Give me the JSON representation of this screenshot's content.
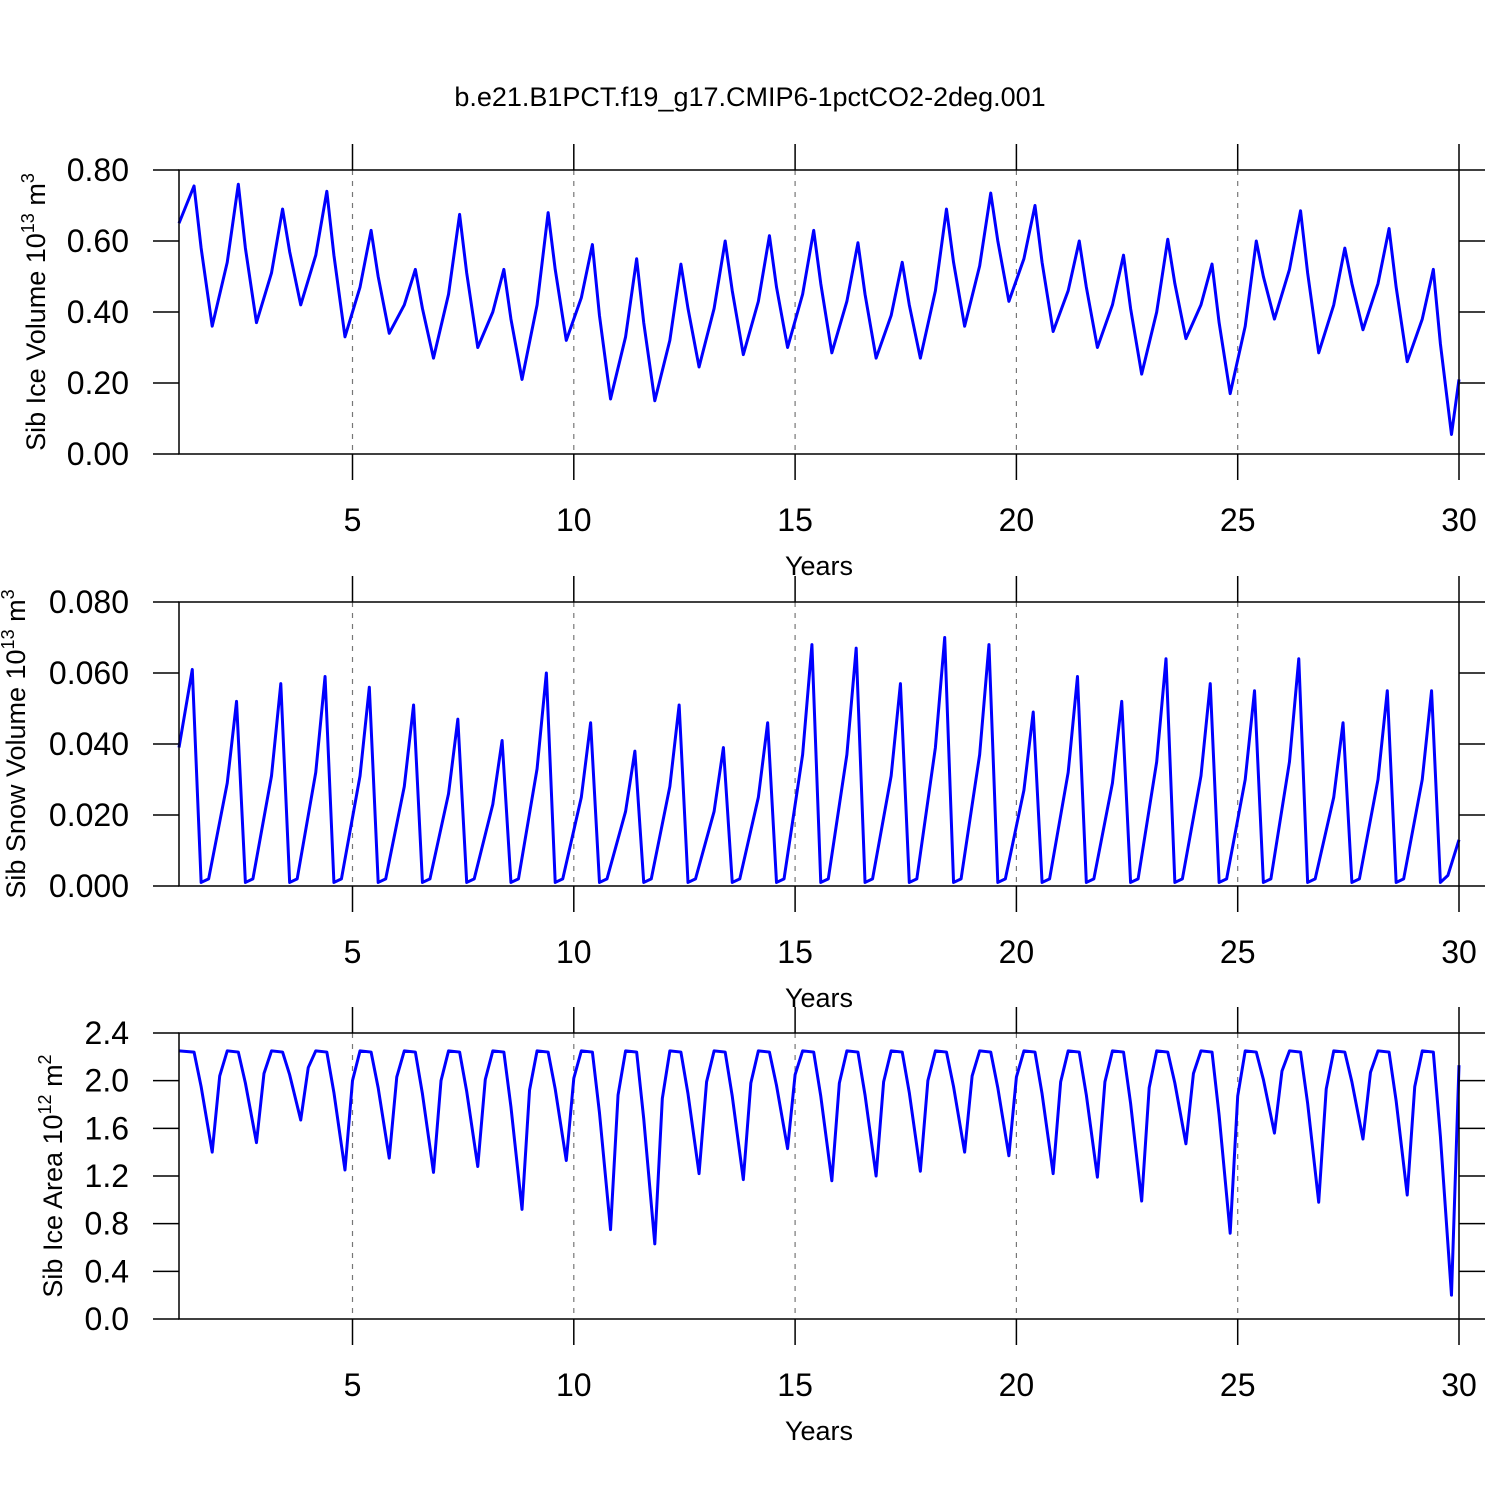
{
  "chart_data": [
    {
      "type": "line",
      "title": "b.e21.B1PCT.f19_g17.CMIP6-1pctCO2-2deg.001",
      "ylabel": [
        "Sib Ice Volume 10",
        "13",
        " m",
        "3"
      ],
      "xlabel": "Years",
      "color": "#0000ff",
      "xlim": [
        1.08,
        30
      ],
      "xticks": [
        5,
        10,
        15,
        20,
        25,
        30
      ],
      "grid": true,
      "ylim": [
        0,
        0.8
      ],
      "yticks": [
        {
          "value": 0,
          "label": "0.00"
        },
        {
          "value": 0.2,
          "label": "0.20"
        },
        {
          "value": 0.4,
          "label": "0.40"
        },
        {
          "value": 0.6,
          "label": "0.60"
        },
        {
          "value": 0.8,
          "label": "0.80"
        }
      ],
      "x": [
        1.08,
        1.42,
        1.58,
        1.83,
        2.17,
        2.42,
        2.58,
        2.83,
        3.17,
        3.42,
        3.58,
        3.83,
        4.17,
        4.42,
        4.58,
        4.83,
        5.17,
        5.42,
        5.58,
        5.83,
        6.17,
        6.42,
        6.58,
        6.83,
        7.17,
        7.42,
        7.58,
        7.83,
        8.17,
        8.42,
        8.58,
        8.83,
        9.17,
        9.42,
        9.58,
        9.83,
        10.17,
        10.42,
        10.58,
        10.83,
        11.17,
        11.42,
        11.58,
        11.83,
        12.17,
        12.42,
        12.58,
        12.83,
        13.17,
        13.42,
        13.58,
        13.83,
        14.17,
        14.42,
        14.58,
        14.83,
        15.17,
        15.42,
        15.58,
        15.83,
        16.17,
        16.42,
        16.58,
        16.83,
        17.17,
        17.42,
        17.58,
        17.83,
        18.17,
        18.42,
        18.58,
        18.83,
        19.17,
        19.42,
        19.58,
        19.83,
        20.17,
        20.42,
        20.58,
        20.83,
        21.17,
        21.42,
        21.58,
        21.83,
        22.17,
        22.42,
        22.58,
        22.83,
        23.17,
        23.42,
        23.58,
        23.83,
        24.17,
        24.42,
        24.58,
        24.83,
        25.17,
        25.42,
        25.58,
        25.83,
        26.17,
        26.42,
        26.58,
        26.83,
        27.17,
        27.42,
        27.58,
        27.83,
        28.17,
        28.42,
        28.58,
        28.83,
        29.17,
        29.42,
        29.58,
        29.83,
        30
      ],
      "values": [
        0.65,
        0.755,
        0.58,
        0.36,
        0.54,
        0.76,
        0.58,
        0.37,
        0.51,
        0.69,
        0.57,
        0.42,
        0.56,
        0.74,
        0.56,
        0.33,
        0.47,
        0.63,
        0.5,
        0.34,
        0.42,
        0.52,
        0.41,
        0.27,
        0.45,
        0.675,
        0.51,
        0.3,
        0.4,
        0.52,
        0.38,
        0.21,
        0.42,
        0.68,
        0.52,
        0.32,
        0.44,
        0.59,
        0.39,
        0.155,
        0.33,
        0.55,
        0.37,
        0.15,
        0.32,
        0.535,
        0.41,
        0.245,
        0.41,
        0.6,
        0.46,
        0.28,
        0.43,
        0.615,
        0.47,
        0.3,
        0.45,
        0.63,
        0.48,
        0.285,
        0.43,
        0.595,
        0.45,
        0.27,
        0.39,
        0.54,
        0.42,
        0.27,
        0.46,
        0.69,
        0.54,
        0.36,
        0.53,
        0.735,
        0.6,
        0.43,
        0.55,
        0.7,
        0.54,
        0.345,
        0.46,
        0.6,
        0.47,
        0.3,
        0.42,
        0.56,
        0.41,
        0.225,
        0.4,
        0.605,
        0.48,
        0.325,
        0.42,
        0.535,
        0.37,
        0.17,
        0.36,
        0.6,
        0.5,
        0.38,
        0.52,
        0.685,
        0.51,
        0.285,
        0.42,
        0.58,
        0.48,
        0.35,
        0.48,
        0.635,
        0.47,
        0.26,
        0.38,
        0.52,
        0.31,
        0.055,
        0.21
      ]
    },
    {
      "type": "line",
      "ylabel": [
        "Sib Snow Volume 10",
        "13",
        " m",
        "3"
      ],
      "xlabel": "Years",
      "color": "#0000ff",
      "xlim": [
        1.08,
        30
      ],
      "xticks": [
        5,
        10,
        15,
        20,
        25,
        30
      ],
      "grid": true,
      "ylim": [
        0,
        0.08
      ],
      "yticks": [
        {
          "value": 0,
          "label": "0.000"
        },
        {
          "value": 0.02,
          "label": "0.020"
        },
        {
          "value": 0.04,
          "label": "0.040"
        },
        {
          "value": 0.06,
          "label": "0.060"
        },
        {
          "value": 0.08,
          "label": "0.080"
        }
      ],
      "x": [
        1.08,
        1.38,
        1.58,
        1.75,
        2.17,
        2.38,
        2.58,
        2.75,
        3.17,
        3.38,
        3.58,
        3.75,
        4.17,
        4.38,
        4.58,
        4.75,
        5.17,
        5.38,
        5.58,
        5.75,
        6.17,
        6.38,
        6.58,
        6.75,
        7.17,
        7.38,
        7.58,
        7.75,
        8.17,
        8.38,
        8.58,
        8.75,
        9.17,
        9.38,
        9.58,
        9.75,
        10.17,
        10.38,
        10.58,
        10.75,
        11.17,
        11.38,
        11.58,
        11.75,
        12.17,
        12.38,
        12.58,
        12.75,
        13.17,
        13.38,
        13.58,
        13.75,
        14.17,
        14.38,
        14.58,
        14.75,
        15.17,
        15.38,
        15.58,
        15.75,
        16.17,
        16.38,
        16.58,
        16.75,
        17.17,
        17.38,
        17.58,
        17.75,
        18.17,
        18.38,
        18.58,
        18.75,
        19.17,
        19.38,
        19.58,
        19.75,
        20.17,
        20.38,
        20.58,
        20.75,
        21.17,
        21.38,
        21.58,
        21.75,
        22.17,
        22.38,
        22.58,
        22.75,
        23.17,
        23.38,
        23.58,
        23.75,
        24.17,
        24.38,
        24.58,
        24.75,
        25.17,
        25.38,
        25.58,
        25.75,
        26.17,
        26.38,
        26.58,
        26.75,
        27.17,
        27.38,
        27.58,
        27.75,
        28.17,
        28.38,
        28.58,
        28.75,
        29.17,
        29.38,
        29.58,
        29.75,
        30
      ],
      "values": [
        0.039,
        0.061,
        0.001,
        0.002,
        0.029,
        0.052,
        0.001,
        0.002,
        0.031,
        0.057,
        0.001,
        0.002,
        0.032,
        0.059,
        0.001,
        0.002,
        0.031,
        0.056,
        0.001,
        0.002,
        0.028,
        0.051,
        0.001,
        0.002,
        0.026,
        0.047,
        0.001,
        0.002,
        0.023,
        0.041,
        0.001,
        0.002,
        0.033,
        0.06,
        0.001,
        0.002,
        0.025,
        0.046,
        0.001,
        0.002,
        0.021,
        0.038,
        0.001,
        0.002,
        0.028,
        0.051,
        0.001,
        0.002,
        0.021,
        0.039,
        0.001,
        0.002,
        0.025,
        0.046,
        0.001,
        0.002,
        0.037,
        0.068,
        0.001,
        0.002,
        0.037,
        0.067,
        0.001,
        0.002,
        0.031,
        0.057,
        0.001,
        0.002,
        0.039,
        0.07,
        0.001,
        0.002,
        0.037,
        0.068,
        0.001,
        0.002,
        0.027,
        0.049,
        0.001,
        0.002,
        0.032,
        0.059,
        0.001,
        0.002,
        0.029,
        0.052,
        0.001,
        0.002,
        0.035,
        0.064,
        0.001,
        0.002,
        0.031,
        0.057,
        0.001,
        0.002,
        0.03,
        0.055,
        0.001,
        0.002,
        0.035,
        0.064,
        0.001,
        0.002,
        0.025,
        0.046,
        0.001,
        0.002,
        0.03,
        0.055,
        0.001,
        0.002,
        0.03,
        0.055,
        0.001,
        0.003,
        0.013
      ]
    },
    {
      "type": "line",
      "ylabel": [
        "Sib Ice Area 10",
        "12",
        " m",
        "2"
      ],
      "xlabel": "Years",
      "color": "#0000ff",
      "xlim": [
        1.08,
        30
      ],
      "xticks": [
        5,
        10,
        15,
        20,
        25,
        30
      ],
      "grid": true,
      "ylim": [
        0,
        2.4
      ],
      "yticks": [
        {
          "value": 0,
          "label": "0.0"
        },
        0.4,
        0.8,
        1.2,
        1.6,
        {
          "value": 2,
          "label": "2.0"
        },
        2.4
      ],
      "x": [
        1.08,
        1.42,
        1.58,
        1.83,
        2,
        2.17,
        2.42,
        2.58,
        2.83,
        3,
        3.17,
        3.42,
        3.58,
        3.83,
        4,
        4.17,
        4.42,
        4.58,
        4.83,
        5,
        5.17,
        5.42,
        5.58,
        5.83,
        6,
        6.17,
        6.42,
        6.58,
        6.83,
        7,
        7.17,
        7.42,
        7.58,
        7.83,
        8,
        8.17,
        8.42,
        8.58,
        8.83,
        9,
        9.17,
        9.42,
        9.58,
        9.83,
        10,
        10.17,
        10.42,
        10.58,
        10.83,
        11,
        11.17,
        11.42,
        11.58,
        11.83,
        12,
        12.17,
        12.42,
        12.58,
        12.83,
        13,
        13.17,
        13.42,
        13.58,
        13.83,
        14,
        14.17,
        14.42,
        14.58,
        14.83,
        15,
        15.17,
        15.42,
        15.58,
        15.83,
        16,
        16.17,
        16.42,
        16.58,
        16.83,
        17,
        17.17,
        17.42,
        17.58,
        17.83,
        18,
        18.17,
        18.42,
        18.58,
        18.83,
        19,
        19.17,
        19.42,
        19.58,
        19.83,
        20,
        20.17,
        20.42,
        20.58,
        20.83,
        21,
        21.17,
        21.42,
        21.58,
        21.83,
        22,
        22.17,
        22.42,
        22.58,
        22.83,
        23,
        23.17,
        23.42,
        23.58,
        23.83,
        24,
        24.17,
        24.42,
        24.58,
        24.83,
        25,
        25.17,
        25.42,
        25.58,
        25.83,
        26,
        26.17,
        26.42,
        26.58,
        26.83,
        27,
        27.17,
        27.42,
        27.58,
        27.83,
        28,
        28.17,
        28.42,
        28.58,
        28.83,
        29,
        29.17,
        29.42,
        29.58,
        29.83,
        30
      ],
      "values": [
        2.25,
        2.24,
        1.95,
        1.4,
        2.04,
        2.25,
        2.24,
        1.98,
        1.48,
        2.06,
        2.25,
        2.24,
        2.05,
        1.67,
        2.11,
        2.25,
        2.24,
        1.9,
        1.25,
        2.0,
        2.25,
        2.24,
        1.94,
        1.35,
        2.03,
        2.25,
        2.24,
        1.89,
        1.23,
        2.0,
        2.25,
        2.24,
        1.91,
        1.28,
        2.01,
        2.25,
        2.24,
        1.78,
        0.92,
        1.92,
        2.25,
        2.24,
        1.93,
        1.33,
        2.02,
        2.25,
        2.24,
        1.73,
        0.75,
        1.88,
        2.25,
        2.24,
        1.68,
        0.63,
        1.85,
        2.25,
        2.24,
        1.89,
        1.22,
        1.99,
        2.25,
        2.24,
        1.87,
        1.17,
        1.98,
        2.25,
        2.24,
        1.96,
        1.43,
        2.05,
        2.25,
        2.24,
        1.87,
        1.16,
        1.98,
        2.25,
        2.24,
        1.88,
        1.2,
        1.99,
        2.25,
        2.24,
        1.9,
        1.24,
        2.0,
        2.25,
        2.24,
        1.95,
        1.4,
        2.04,
        2.25,
        2.24,
        1.94,
        1.37,
        2.03,
        2.25,
        2.24,
        1.89,
        1.22,
        1.99,
        2.25,
        2.24,
        1.88,
        1.19,
        1.99,
        2.25,
        2.24,
        1.81,
        0.99,
        1.94,
        2.25,
        2.24,
        1.98,
        1.47,
        2.06,
        2.25,
        2.24,
        1.71,
        0.72,
        1.87,
        2.25,
        2.24,
        2.01,
        1.56,
        2.08,
        2.25,
        2.24,
        1.81,
        0.98,
        1.93,
        2.25,
        2.24,
        1.99,
        1.51,
        2.07,
        2.25,
        2.24,
        1.83,
        1.04,
        1.95,
        2.25,
        2.24,
        1.53,
        0.2,
        2.13
      ]
    }
  ]
}
